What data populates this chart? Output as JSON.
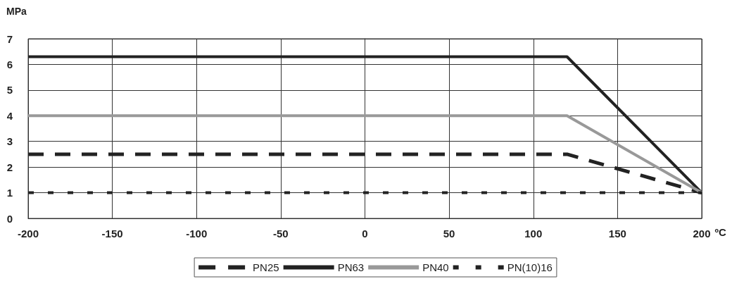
{
  "chart_data": {
    "type": "line",
    "xlabel": "ºC",
    "ylabel": "MPa",
    "x": [
      -200,
      120,
      200
    ],
    "series": [
      {
        "name": "PN25",
        "color": "#222222",
        "line_style": "dashed",
        "values": [
          2.5,
          2.5,
          1
        ]
      },
      {
        "name": "PN63",
        "color": "#222222",
        "line_style": "solid",
        "values": [
          6.3,
          6.3,
          1
        ]
      },
      {
        "name": "PN40",
        "color": "#999999",
        "line_style": "solid",
        "values": [
          4,
          4,
          1
        ]
      },
      {
        "name": "PN(10)16",
        "color": "#222222",
        "line_style": "dotted",
        "values": [
          1,
          1,
          1
        ]
      }
    ],
    "xlim": [
      -200,
      200
    ],
    "xticks": [
      -200,
      -150,
      -100,
      -50,
      0,
      50,
      100,
      150,
      200
    ],
    "ylim": [
      0,
      7
    ],
    "yticks": [
      0,
      1,
      2,
      3,
      4,
      5,
      6,
      7
    ],
    "grid": true,
    "legend": "bottom",
    "marker": "none"
  }
}
